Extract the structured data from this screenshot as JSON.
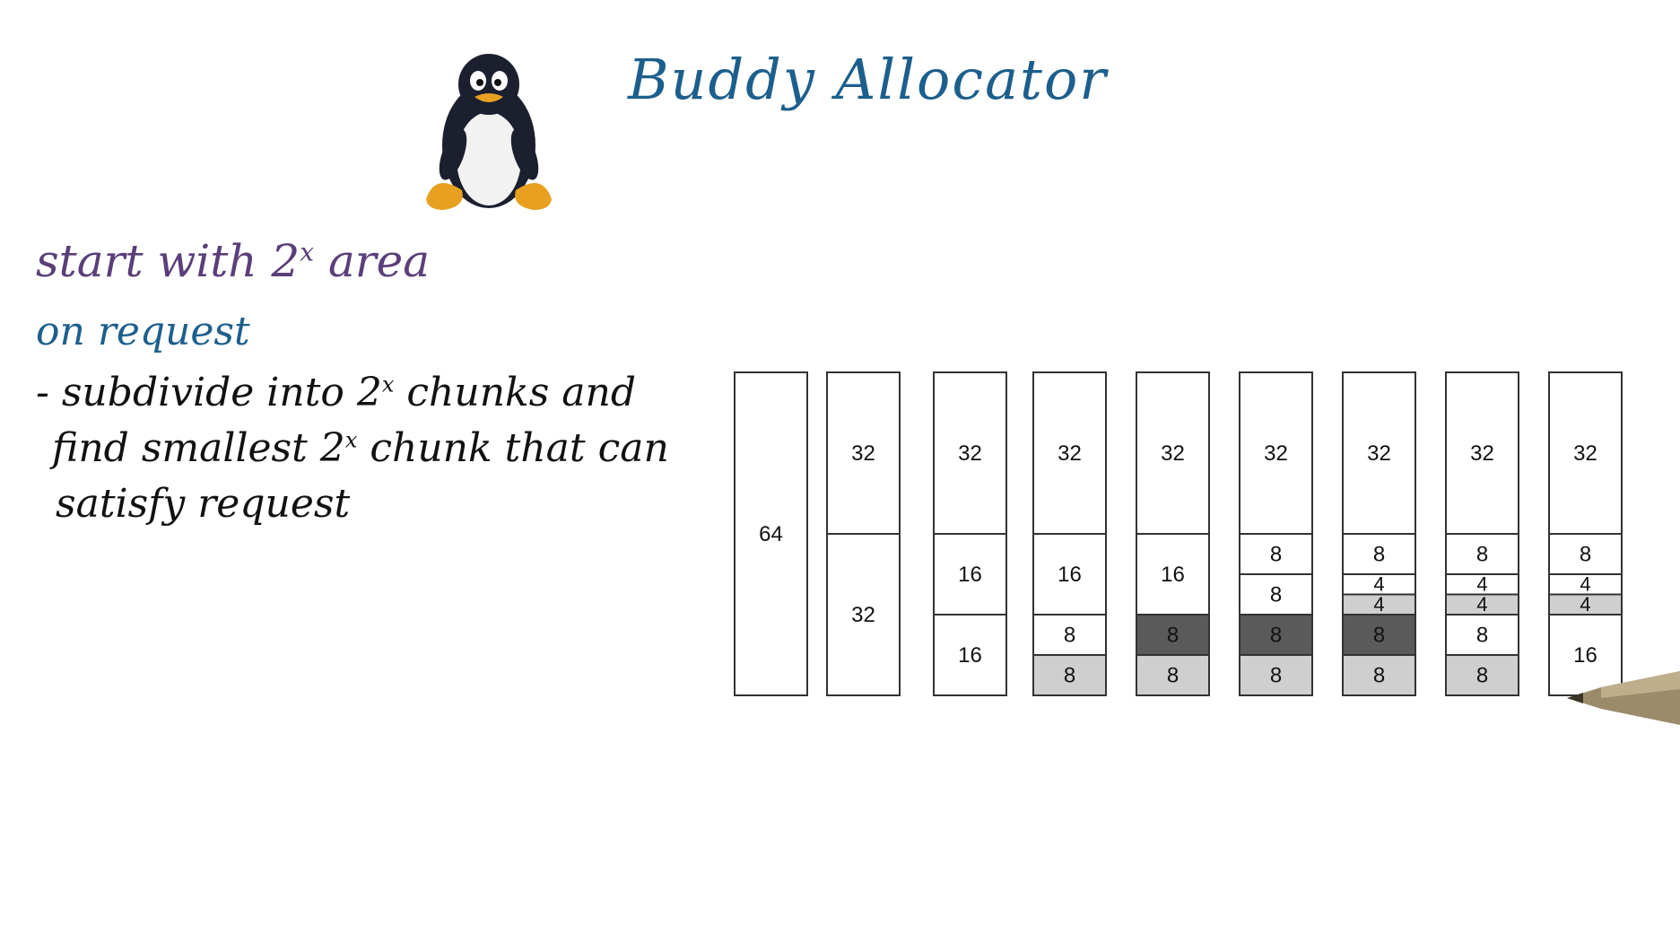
{
  "title": "Buddy Allocator",
  "notes": {
    "line1_text": "start with 2",
    "line1_sup": "x",
    "line1_tail": " area",
    "line2": "on request",
    "line3_text": "- subdivide into 2",
    "line3_sup": "x",
    "line3_tail": " chunks and",
    "line4_text": "find smallest 2",
    "line4_sup": "x",
    "line4_tail": " chunk that can",
    "line5": "satisfy request"
  },
  "colors": {
    "free": "#ffffff",
    "allocated": "#cfcfcf",
    "just_allocated": "#5a5a5a",
    "title": "#1d5f8c",
    "line1": "#5a3f78"
  },
  "icons": {
    "mascot": "penguin-icon",
    "pen": "pen-icon"
  },
  "columns": [
    {
      "blocks": [
        {
          "label": "64",
          "size": 64,
          "state": "free"
        }
      ]
    },
    {
      "blocks": [
        {
          "label": "32",
          "size": 32,
          "state": "free"
        },
        {
          "label": "32",
          "size": 32,
          "state": "free"
        }
      ]
    },
    {
      "blocks": [
        {
          "label": "32",
          "size": 32,
          "state": "free"
        },
        {
          "label": "16",
          "size": 16,
          "state": "free"
        },
        {
          "label": "16",
          "size": 16,
          "state": "free"
        }
      ]
    },
    {
      "blocks": [
        {
          "label": "32",
          "size": 32,
          "state": "free"
        },
        {
          "label": "16",
          "size": 16,
          "state": "free"
        },
        {
          "label": "8",
          "size": 8,
          "state": "free"
        },
        {
          "label": "8",
          "size": 8,
          "state": "allocated"
        }
      ]
    },
    {
      "blocks": [
        {
          "label": "32",
          "size": 32,
          "state": "free"
        },
        {
          "label": "16",
          "size": 16,
          "state": "free"
        },
        {
          "label": "8",
          "size": 8,
          "state": "just_allocated"
        },
        {
          "label": "8",
          "size": 8,
          "state": "allocated"
        }
      ]
    },
    {
      "blocks": [
        {
          "label": "32",
          "size": 32,
          "state": "free"
        },
        {
          "label": "8",
          "size": 8,
          "state": "free"
        },
        {
          "label": "8",
          "size": 8,
          "state": "free"
        },
        {
          "label": "8",
          "size": 8,
          "state": "just_allocated"
        },
        {
          "label": "8",
          "size": 8,
          "state": "allocated"
        }
      ]
    },
    {
      "blocks": [
        {
          "label": "32",
          "size": 32,
          "state": "free"
        },
        {
          "label": "8",
          "size": 8,
          "state": "free"
        },
        {
          "label": "4",
          "size": 4,
          "state": "free"
        },
        {
          "label": "4",
          "size": 4,
          "state": "allocated"
        },
        {
          "label": "8",
          "size": 8,
          "state": "just_allocated"
        },
        {
          "label": "8",
          "size": 8,
          "state": "allocated"
        }
      ]
    },
    {
      "blocks": [
        {
          "label": "32",
          "size": 32,
          "state": "free"
        },
        {
          "label": "8",
          "size": 8,
          "state": "free"
        },
        {
          "label": "4",
          "size": 4,
          "state": "free"
        },
        {
          "label": "4",
          "size": 4,
          "state": "allocated"
        },
        {
          "label": "8",
          "size": 8,
          "state": "free"
        },
        {
          "label": "8",
          "size": 8,
          "state": "allocated"
        }
      ]
    },
    {
      "blocks": [
        {
          "label": "32",
          "size": 32,
          "state": "free"
        },
        {
          "label": "8",
          "size": 8,
          "state": "free"
        },
        {
          "label": "4",
          "size": 4,
          "state": "free"
        },
        {
          "label": "4",
          "size": 4,
          "state": "allocated"
        },
        {
          "label": "16",
          "size": 16,
          "state": "free"
        }
      ]
    }
  ]
}
